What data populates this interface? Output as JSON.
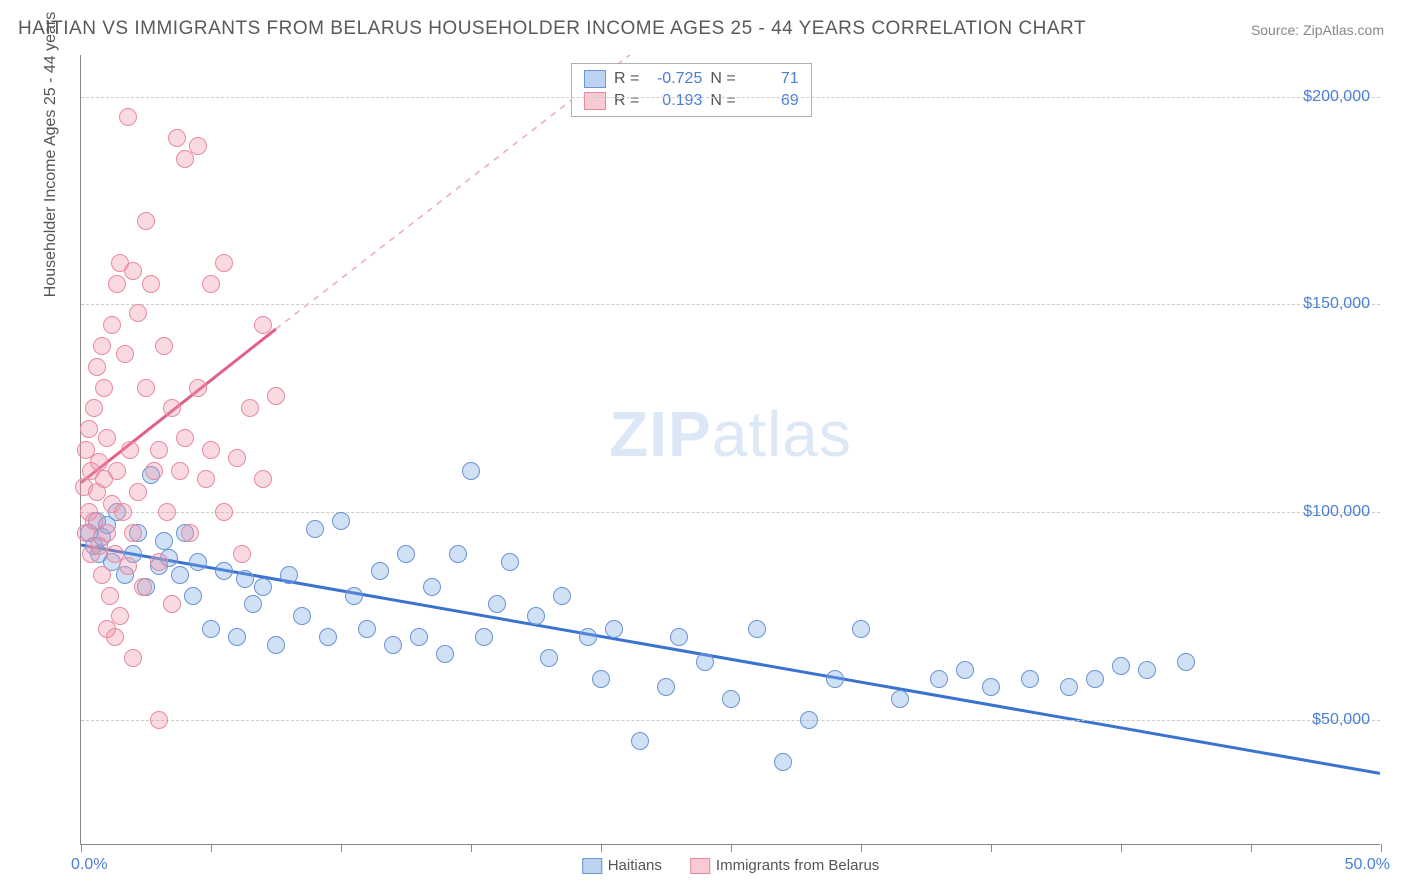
{
  "title": "HAITIAN VS IMMIGRANTS FROM BELARUS HOUSEHOLDER INCOME AGES 25 - 44 YEARS CORRELATION CHART",
  "source": "Source: ZipAtlas.com",
  "ylabel": "Householder Income Ages 25 - 44 years",
  "watermark_bold": "ZIP",
  "watermark_rest": "atlas",
  "chart": {
    "type": "scatter",
    "xlim": [
      0,
      50
    ],
    "ylim": [
      20000,
      210000
    ],
    "x_start_label": "0.0%",
    "x_end_label": "50.0%",
    "xtick_positions": [
      0,
      5,
      10,
      15,
      20,
      25,
      30,
      35,
      40,
      45,
      50
    ],
    "yticks": [
      {
        "v": 50000,
        "label": "$50,000"
      },
      {
        "v": 100000,
        "label": "$100,000"
      },
      {
        "v": 150000,
        "label": "$150,000"
      },
      {
        "v": 200000,
        "label": "$200,000"
      }
    ],
    "background_color": "#ffffff",
    "grid_color": "#cccccc",
    "axis_color": "#888888",
    "tick_label_color": "#4a7fd6",
    "marker_radius": 9,
    "series": [
      {
        "name": "Haitians",
        "color_fill": "rgba(120,165,225,0.35)",
        "color_stroke": "#6a94d4",
        "cls": "blue",
        "r_value": "-0.725",
        "n_value": "71",
        "trend": {
          "x1": 0,
          "y1": 92000,
          "x2": 50,
          "y2": 37000,
          "dash": false,
          "stroke": "#3a72d0",
          "width": 3
        },
        "points": [
          [
            0.3,
            95000
          ],
          [
            0.5,
            92000
          ],
          [
            0.6,
            98000
          ],
          [
            0.7,
            90000
          ],
          [
            0.8,
            94000
          ],
          [
            1.0,
            97000
          ],
          [
            1.2,
            88000
          ],
          [
            1.4,
            100000
          ],
          [
            1.7,
            85000
          ],
          [
            2.0,
            90000
          ],
          [
            2.2,
            95000
          ],
          [
            2.5,
            82000
          ],
          [
            2.7,
            109000
          ],
          [
            3.0,
            87000
          ],
          [
            3.2,
            93000
          ],
          [
            3.4,
            89000
          ],
          [
            3.8,
            85000
          ],
          [
            4.0,
            95000
          ],
          [
            4.3,
            80000
          ],
          [
            4.5,
            88000
          ],
          [
            5.0,
            72000
          ],
          [
            5.5,
            86000
          ],
          [
            6.0,
            70000
          ],
          [
            6.3,
            84000
          ],
          [
            6.6,
            78000
          ],
          [
            7.0,
            82000
          ],
          [
            7.5,
            68000
          ],
          [
            8.0,
            85000
          ],
          [
            8.5,
            75000
          ],
          [
            9.0,
            96000
          ],
          [
            9.5,
            70000
          ],
          [
            10.0,
            98000
          ],
          [
            10.5,
            80000
          ],
          [
            11.0,
            72000
          ],
          [
            11.5,
            86000
          ],
          [
            12.0,
            68000
          ],
          [
            12.5,
            90000
          ],
          [
            13.0,
            70000
          ],
          [
            13.5,
            82000
          ],
          [
            14.0,
            66000
          ],
          [
            14.5,
            90000
          ],
          [
            15.0,
            110000
          ],
          [
            15.5,
            70000
          ],
          [
            16.0,
            78000
          ],
          [
            16.5,
            88000
          ],
          [
            17.5,
            75000
          ],
          [
            18.0,
            65000
          ],
          [
            18.5,
            80000
          ],
          [
            19.5,
            70000
          ],
          [
            20.0,
            60000
          ],
          [
            20.5,
            72000
          ],
          [
            21.5,
            45000
          ],
          [
            22.5,
            58000
          ],
          [
            23.0,
            70000
          ],
          [
            24.0,
            64000
          ],
          [
            25.0,
            55000
          ],
          [
            26.0,
            72000
          ],
          [
            27.0,
            40000
          ],
          [
            28.0,
            50000
          ],
          [
            29.0,
            60000
          ],
          [
            30.0,
            72000
          ],
          [
            31.5,
            55000
          ],
          [
            33.0,
            60000
          ],
          [
            34.0,
            62000
          ],
          [
            35.0,
            58000
          ],
          [
            36.5,
            60000
          ],
          [
            38.0,
            58000
          ],
          [
            39.0,
            60000
          ],
          [
            40.0,
            63000
          ],
          [
            41.0,
            62000
          ],
          [
            42.5,
            64000
          ]
        ]
      },
      {
        "name": "Immigrants from Belarus",
        "color_fill": "rgba(240,150,170,0.35)",
        "color_stroke": "#e88aa0",
        "cls": "pink",
        "r_value": "0.193",
        "n_value": "69",
        "trend_solid": {
          "x1": 0,
          "y1": 107000,
          "x2": 7.5,
          "y2": 144000,
          "stroke": "#e06088",
          "width": 3
        },
        "trend_dash": {
          "x1": 7.5,
          "y1": 144000,
          "x2": 50,
          "y2": 350000,
          "stroke": "#f0a8b8",
          "width": 1.5
        },
        "points": [
          [
            0.1,
            106000
          ],
          [
            0.2,
            95000
          ],
          [
            0.2,
            115000
          ],
          [
            0.3,
            100000
          ],
          [
            0.3,
            120000
          ],
          [
            0.4,
            90000
          ],
          [
            0.4,
            110000
          ],
          [
            0.5,
            125000
          ],
          [
            0.5,
            98000
          ],
          [
            0.6,
            105000
          ],
          [
            0.6,
            135000
          ],
          [
            0.7,
            92000
          ],
          [
            0.7,
            112000
          ],
          [
            0.8,
            140000
          ],
          [
            0.8,
            85000
          ],
          [
            0.9,
            108000
          ],
          [
            0.9,
            130000
          ],
          [
            1.0,
            95000
          ],
          [
            1.0,
            118000
          ],
          [
            1.1,
            80000
          ],
          [
            1.2,
            145000
          ],
          [
            1.2,
            102000
          ],
          [
            1.3,
            90000
          ],
          [
            1.4,
            155000
          ],
          [
            1.4,
            110000
          ],
          [
            1.5,
            75000
          ],
          [
            1.5,
            160000
          ],
          [
            1.6,
            100000
          ],
          [
            1.7,
            138000
          ],
          [
            1.8,
            87000
          ],
          [
            1.8,
            195000
          ],
          [
            1.9,
            115000
          ],
          [
            2.0,
            158000
          ],
          [
            2.0,
            95000
          ],
          [
            2.2,
            105000
          ],
          [
            2.2,
            148000
          ],
          [
            2.4,
            82000
          ],
          [
            2.5,
            130000
          ],
          [
            2.5,
            170000
          ],
          [
            2.7,
            155000
          ],
          [
            2.8,
            110000
          ],
          [
            3.0,
            115000
          ],
          [
            3.0,
            88000
          ],
          [
            3.2,
            140000
          ],
          [
            3.3,
            100000
          ],
          [
            3.5,
            125000
          ],
          [
            3.5,
            78000
          ],
          [
            3.7,
            190000
          ],
          [
            3.8,
            110000
          ],
          [
            4.0,
            118000
          ],
          [
            4.0,
            185000
          ],
          [
            4.2,
            95000
          ],
          [
            4.5,
            130000
          ],
          [
            4.5,
            188000
          ],
          [
            4.8,
            108000
          ],
          [
            5.0,
            115000
          ],
          [
            5.0,
            155000
          ],
          [
            5.5,
            100000
          ],
          [
            5.5,
            160000
          ],
          [
            6.0,
            113000
          ],
          [
            6.2,
            90000
          ],
          [
            6.5,
            125000
          ],
          [
            7.0,
            108000
          ],
          [
            7.0,
            145000
          ],
          [
            7.5,
            128000
          ],
          [
            1.3,
            70000
          ],
          [
            2.0,
            65000
          ],
          [
            3.0,
            50000
          ],
          [
            1.0,
            72000
          ]
        ]
      }
    ]
  },
  "legend": {
    "r_label": "R =",
    "n_label": "N ="
  },
  "bottom_legend": [
    {
      "cls": "blue",
      "label": "Haitians"
    },
    {
      "cls": "pink",
      "label": "Immigrants from Belarus"
    }
  ]
}
